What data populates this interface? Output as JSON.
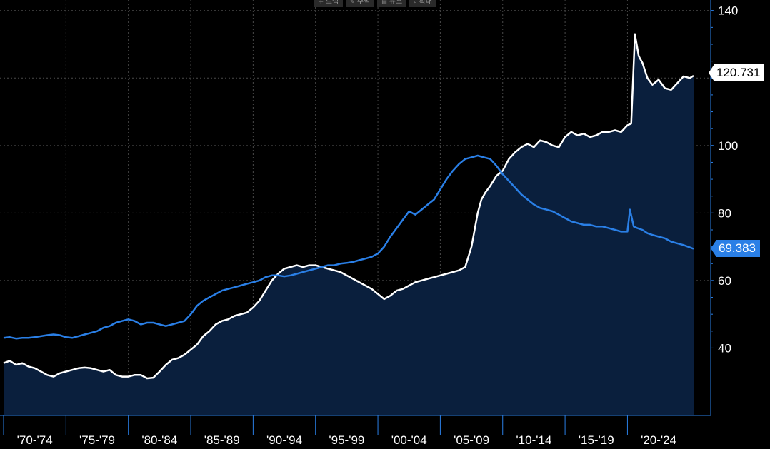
{
  "toolbar": [
    {
      "icon": "plus-icon",
      "label": "트랙"
    },
    {
      "icon": "pencil-icon",
      "label": "주석"
    },
    {
      "icon": "news-icon",
      "label": "뉴스"
    },
    {
      "icon": "zoom-icon",
      "label": "확대"
    }
  ],
  "callouts": {
    "white_value": "120.731",
    "blue_value": "69.383"
  },
  "chart_data": {
    "type": "area",
    "x_tick_labels": [
      "'70-'74",
      "'75-'79",
      "'80-'84",
      "'85-'89",
      "'90-'94",
      "'95-'99",
      "'00-'04",
      "'05-'09",
      "'10-'14",
      "'15-'19",
      "'20-'24"
    ],
    "y_ticks": [
      40,
      60,
      80,
      100,
      120,
      140
    ],
    "y_tick_labels": [
      "40",
      "60",
      "80",
      "100",
      "",
      "140"
    ],
    "ylim": [
      20,
      141
    ],
    "xlim": [
      1970,
      2025.7
    ],
    "grid": true,
    "colors": {
      "white_series": "#ffffff",
      "blue_series": "#2a7fe6",
      "area_fill": "#0a1f3d",
      "axis": "#2a7fe6"
    },
    "series": [
      {
        "color": "white",
        "filled": true,
        "x": [
          1970.0,
          1970.5,
          1971.0,
          1971.5,
          1972.0,
          1972.5,
          1973.0,
          1973.5,
          1974.0,
          1974.5,
          1975.0,
          1975.5,
          1976.0,
          1976.5,
          1977.0,
          1977.5,
          1978.0,
          1978.5,
          1979.0,
          1979.5,
          1980.0,
          1980.5,
          1981.0,
          1981.5,
          1982.0,
          1982.5,
          1983.0,
          1983.5,
          1984.0,
          1984.5,
          1985.0,
          1985.5,
          1986.0,
          1986.5,
          1987.0,
          1987.5,
          1988.0,
          1988.5,
          1989.0,
          1989.5,
          1990.0,
          1990.5,
          1991.0,
          1991.5,
          1992.0,
          1992.5,
          1993.0,
          1993.5,
          1994.0,
          1994.5,
          1995.0,
          1995.5,
          1996.0,
          1996.5,
          1997.0,
          1997.5,
          1998.0,
          1998.5,
          1999.0,
          1999.5,
          2000.0,
          2000.5,
          2001.0,
          2001.5,
          2002.0,
          2002.5,
          2003.0,
          2003.5,
          2004.0,
          2004.5,
          2005.0,
          2005.5,
          2006.0,
          2006.5,
          2007.0,
          2007.5,
          2008.0,
          2008.3,
          2008.6,
          2009.0,
          2009.5,
          2010.0,
          2010.5,
          2011.0,
          2011.5,
          2012.0,
          2012.5,
          2013.0,
          2013.5,
          2014.0,
          2014.5,
          2015.0,
          2015.5,
          2016.0,
          2016.5,
          2017.0,
          2017.5,
          2018.0,
          2018.5,
          2019.0,
          2019.5,
          2020.0,
          2020.3,
          2020.6,
          2020.9,
          2021.2,
          2021.6,
          2022.0,
          2022.5,
          2023.0,
          2023.5,
          2024.0,
          2024.5,
          2025.0,
          2025.3
        ],
        "values": [
          35.5,
          36.2,
          35.0,
          35.5,
          34.5,
          34.0,
          33.0,
          32.0,
          31.5,
          32.5,
          33.0,
          33.5,
          34.0,
          34.2,
          34.0,
          33.5,
          33.0,
          33.5,
          32.0,
          31.5,
          31.5,
          32.0,
          32.0,
          31.0,
          31.2,
          33.0,
          35.0,
          36.5,
          37.0,
          38.0,
          39.5,
          41.0,
          43.5,
          45.0,
          47.0,
          48.0,
          48.5,
          49.5,
          50.0,
          50.5,
          52.0,
          54.0,
          57.0,
          60.0,
          62.0,
          63.5,
          64.0,
          64.5,
          64.0,
          64.5,
          64.5,
          64.0,
          63.5,
          63.0,
          62.5,
          61.5,
          60.5,
          59.5,
          58.5,
          57.5,
          56.0,
          54.5,
          55.5,
          57.0,
          57.5,
          58.5,
          59.5,
          60.0,
          60.5,
          61.0,
          61.5,
          62.0,
          62.5,
          63.0,
          64.0,
          70.0,
          80.0,
          84.0,
          86.0,
          88.0,
          91.0,
          92.5,
          96.0,
          98.0,
          99.5,
          100.5,
          99.5,
          101.5,
          101.0,
          100.0,
          99.5,
          102.5,
          104.0,
          103.0,
          103.5,
          102.5,
          103.0,
          104.0,
          104.0,
          104.5,
          104.0,
          106.0,
          106.5,
          133.0,
          126.5,
          124.5,
          120.0,
          118.0,
          119.5,
          117.0,
          116.5,
          118.5,
          120.5,
          120.0,
          120.7
        ]
      },
      {
        "color": "blue",
        "filled": false,
        "x": [
          1970.0,
          1970.5,
          1971.0,
          1971.5,
          1972.0,
          1972.5,
          1973.0,
          1973.5,
          1974.0,
          1974.5,
          1975.0,
          1975.5,
          1976.0,
          1976.5,
          1977.0,
          1977.5,
          1978.0,
          1978.5,
          1979.0,
          1979.5,
          1980.0,
          1980.5,
          1981.0,
          1981.5,
          1982.0,
          1982.5,
          1983.0,
          1983.5,
          1984.0,
          1984.5,
          1985.0,
          1985.5,
          1986.0,
          1986.5,
          1987.0,
          1987.5,
          1988.0,
          1988.5,
          1989.0,
          1989.5,
          1990.0,
          1990.5,
          1991.0,
          1991.5,
          1992.0,
          1992.5,
          1993.0,
          1993.5,
          1994.0,
          1994.5,
          1995.0,
          1995.5,
          1996.0,
          1996.5,
          1997.0,
          1997.5,
          1998.0,
          1998.5,
          1999.0,
          1999.5,
          2000.0,
          2000.5,
          2001.0,
          2001.5,
          2002.0,
          2002.5,
          2003.0,
          2003.5,
          2004.0,
          2004.5,
          2005.0,
          2005.5,
          2006.0,
          2006.5,
          2007.0,
          2007.5,
          2008.0,
          2008.5,
          2009.0,
          2009.5,
          2010.0,
          2010.5,
          2011.0,
          2011.5,
          2012.0,
          2012.5,
          2013.0,
          2013.5,
          2014.0,
          2014.5,
          2015.0,
          2015.5,
          2016.0,
          2016.5,
          2017.0,
          2017.5,
          2018.0,
          2018.5,
          2019.0,
          2019.5,
          2020.0,
          2020.2,
          2020.5,
          2020.8,
          2021.2,
          2021.6,
          2022.0,
          2022.5,
          2023.0,
          2023.5,
          2024.0,
          2024.5,
          2025.0,
          2025.3
        ],
        "values": [
          43.0,
          43.2,
          42.8,
          43.0,
          43.0,
          43.2,
          43.5,
          43.8,
          44.0,
          43.8,
          43.2,
          43.0,
          43.5,
          44.0,
          44.5,
          45.0,
          46.0,
          46.5,
          47.5,
          48.0,
          48.5,
          48.0,
          47.0,
          47.5,
          47.5,
          47.0,
          46.5,
          47.0,
          47.5,
          48.0,
          50.0,
          52.5,
          54.0,
          55.0,
          56.0,
          57.0,
          57.5,
          58.0,
          58.5,
          59.0,
          59.5,
          60.0,
          61.0,
          61.5,
          61.5,
          61.2,
          61.5,
          62.0,
          62.5,
          63.0,
          63.5,
          64.0,
          64.5,
          64.5,
          65.0,
          65.2,
          65.5,
          66.0,
          66.5,
          67.0,
          68.0,
          70.0,
          73.0,
          75.5,
          78.0,
          80.5,
          79.5,
          81.0,
          82.5,
          84.0,
          87.0,
          90.0,
          92.5,
          94.5,
          96.0,
          96.5,
          97.0,
          96.5,
          96.0,
          94.0,
          91.5,
          89.5,
          87.5,
          85.5,
          84.0,
          82.5,
          81.5,
          81.0,
          80.5,
          79.5,
          78.5,
          77.5,
          77.0,
          76.5,
          76.5,
          76.0,
          76.0,
          75.5,
          75.0,
          74.5,
          74.5,
          81.0,
          76.0,
          75.5,
          75.0,
          74.0,
          73.5,
          73.0,
          72.5,
          71.5,
          71.0,
          70.5,
          69.8,
          69.4
        ]
      }
    ]
  }
}
